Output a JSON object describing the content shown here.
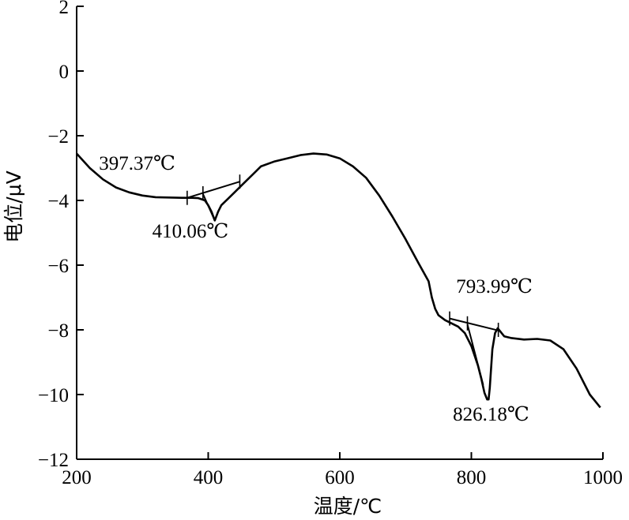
{
  "chart_data": {
    "type": "line",
    "title": "",
    "xlabel": "温度/℃",
    "ylabel": "电位/μV",
    "xlim": [
      200,
      1000
    ],
    "ylim": [
      -12,
      2
    ],
    "xticks": [
      200,
      400,
      600,
      800,
      1000
    ],
    "yticks": [
      2,
      0,
      -2,
      -4,
      -6,
      -8,
      -10,
      -12
    ],
    "ytick_labels": [
      "2",
      "0",
      "−2",
      "−4",
      "−6",
      "−8",
      "−10",
      "−12"
    ],
    "grid": false,
    "series": [
      {
        "x": [
          200,
          220,
          240,
          260,
          280,
          300,
          320,
          340,
          360,
          375,
          385,
          395,
          400,
          405,
          410,
          415,
          420,
          430,
          440,
          450,
          460,
          470,
          480,
          500,
          520,
          540,
          560,
          580,
          600,
          620,
          640,
          660,
          680,
          700,
          720,
          735,
          740,
          745,
          750,
          760,
          770,
          780,
          790,
          800,
          810,
          815,
          820,
          824,
          826.18,
          828,
          832,
          836,
          840,
          850,
          860,
          880,
          900,
          920,
          940,
          960,
          980,
          996
        ],
        "y": [
          -2.55,
          -3.0,
          -3.35,
          -3.6,
          -3.75,
          -3.85,
          -3.9,
          -3.91,
          -3.92,
          -3.92,
          -3.93,
          -4.0,
          -4.15,
          -4.35,
          -4.62,
          -4.35,
          -4.15,
          -3.95,
          -3.75,
          -3.55,
          -3.35,
          -3.15,
          -2.95,
          -2.8,
          -2.7,
          -2.6,
          -2.55,
          -2.58,
          -2.7,
          -2.95,
          -3.3,
          -3.85,
          -4.5,
          -5.2,
          -5.95,
          -6.5,
          -7.0,
          -7.35,
          -7.55,
          -7.7,
          -7.8,
          -7.9,
          -8.1,
          -8.5,
          -9.1,
          -9.5,
          -9.95,
          -10.15,
          -10.15,
          -9.8,
          -8.6,
          -8.1,
          -7.95,
          -8.2,
          -8.25,
          -8.3,
          -8.28,
          -8.33,
          -8.6,
          -9.2,
          -10.0,
          -10.4
        ]
      }
    ],
    "baselines": [
      {
        "x": [
          368,
          448
        ],
        "y": [
          -3.92,
          -3.42
        ]
      },
      {
        "x": [
          767,
          841
        ],
        "y": [
          -7.65,
          -8.02
        ]
      }
    ],
    "tangent_lines": [
      {
        "x": [
          392,
          410
        ],
        "y": [
          -3.8,
          -4.62
        ]
      },
      {
        "x": [
          794,
          818
        ],
        "y": [
          -7.83,
          -9.7
        ]
      }
    ],
    "tick_marks": [
      {
        "x": 368,
        "y": -3.92
      },
      {
        "x": 392,
        "y": -3.78
      },
      {
        "x": 448,
        "y": -3.42
      },
      {
        "x": 767,
        "y": -7.65
      },
      {
        "x": 794,
        "y": -7.8
      },
      {
        "x": 841,
        "y": -8.0
      }
    ],
    "annotations": [
      {
        "text": "397.37℃",
        "x": 292,
        "y": -3.05
      },
      {
        "text": "410.06℃",
        "x": 373,
        "y": -5.15
      },
      {
        "text": "793.99℃",
        "x": 835,
        "y": -6.85
      },
      {
        "text": "826.18℃",
        "x": 830,
        "y": -10.8
      }
    ]
  }
}
